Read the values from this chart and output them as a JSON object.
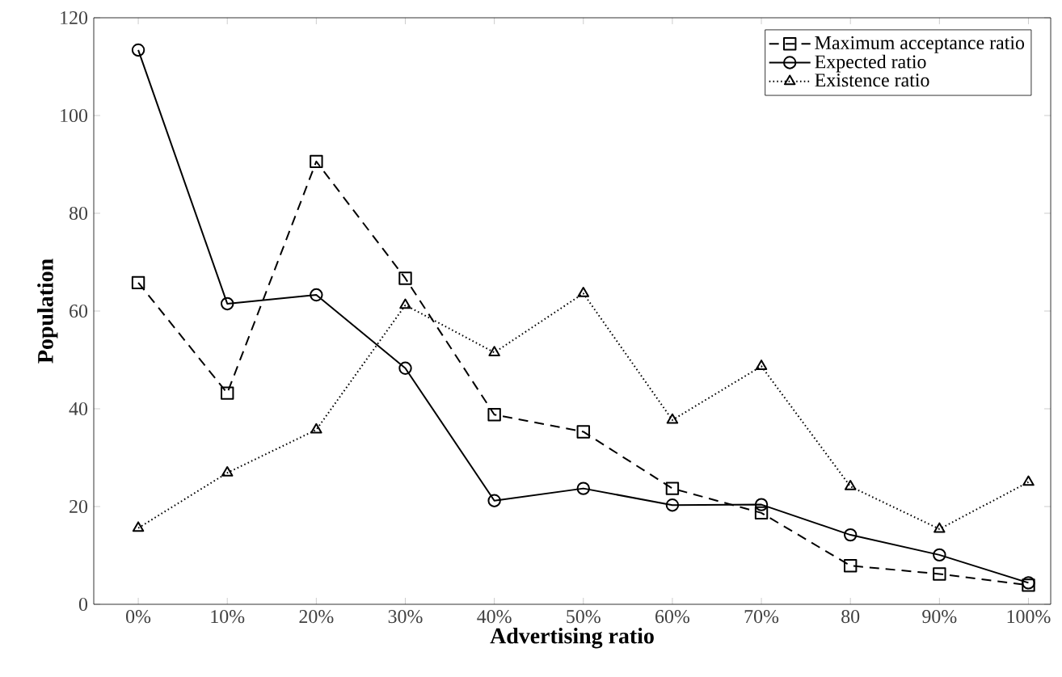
{
  "chart_data": {
    "type": "line",
    "xlabel": "Advertising ratio",
    "ylabel": "Population",
    "categories": [
      "0%",
      "10%",
      "20%",
      "30%",
      "40%",
      "50%",
      "60%",
      "70%",
      "80",
      "90%",
      "100%"
    ],
    "ylim": [
      0,
      120
    ],
    "yticks": [
      0,
      20,
      40,
      60,
      80,
      100,
      120
    ],
    "grid": false,
    "legend": "top right",
    "series": [
      {
        "name": "Maximum acceptance ratio",
        "color": "#000000",
        "marker": "square",
        "line_style": "dashed",
        "values": [
          65.8,
          43.2,
          90.6,
          66.7,
          38.8,
          35.3,
          23.7,
          18.7,
          7.9,
          6.2,
          3.9
        ]
      },
      {
        "name": "Expected ratio",
        "color": "#000000",
        "marker": "circle",
        "line_style": "solid",
        "values": [
          113.4,
          61.5,
          63.3,
          48.3,
          21.2,
          23.7,
          20.3,
          20.4,
          14.2,
          10.1,
          4.4
        ]
      },
      {
        "name": "Existence ratio",
        "color": "#000000",
        "marker": "triangle",
        "line_style": "dotted",
        "values": [
          15.6,
          26.9,
          35.7,
          61.2,
          51.5,
          63.6,
          37.7,
          48.7,
          24.1,
          15.4,
          25.0
        ]
      }
    ]
  }
}
